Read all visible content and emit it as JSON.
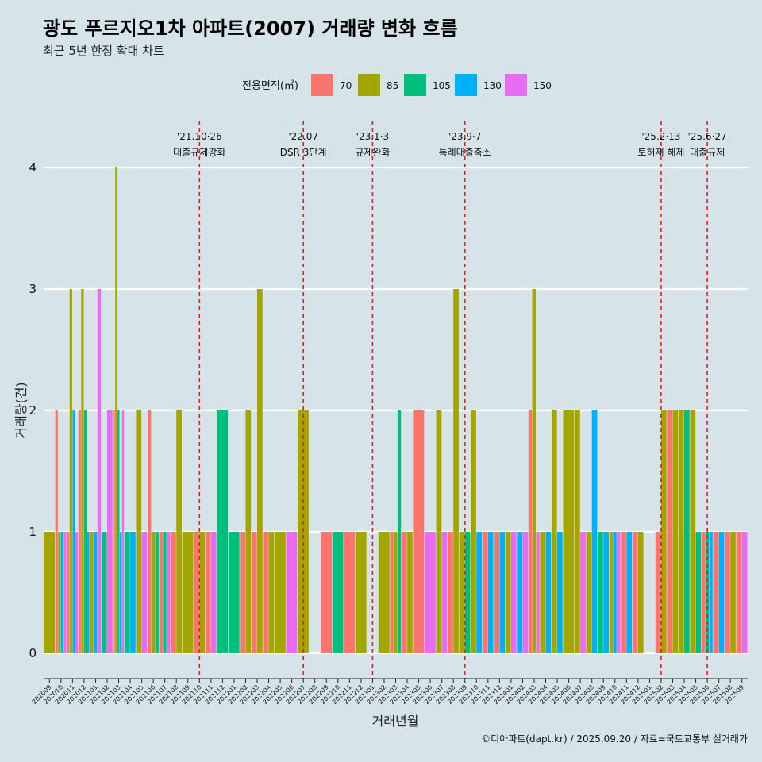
{
  "header": {
    "title": "광도 푸르지오1차 아파트(2007) 거래량 변화 흐름",
    "subtitle": "최근 5년 한정 확대 차트"
  },
  "caption": "©디아파트(dapt.kr) / 2025.09.20 / 자료=국토교통부 실거래가",
  "colors": {
    "background": "#d6e4ea",
    "grid": "#ffffff",
    "event_line": "#e0201b",
    "series": {
      "70": "#f8766d",
      "85": "#a3a500",
      "105": "#00bf7d",
      "130": "#00b0f6",
      "150": "#e76bf3"
    }
  },
  "chart_data": {
    "type": "bar",
    "position": "dodge",
    "xlabel": "거래년월",
    "ylabel": "거래량(건)",
    "ylim": [
      0,
      4
    ],
    "yticks": [
      0,
      1,
      2,
      3,
      4
    ],
    "grid": true,
    "legend": {
      "title": "전용면적(㎡)",
      "position": "top",
      "entries": [
        "70",
        "85",
        "105",
        "130",
        "150"
      ]
    },
    "categories": [
      "202009",
      "202010",
      "202011",
      "202012",
      "202101",
      "202102",
      "202103",
      "202104",
      "202105",
      "202106",
      "202107",
      "202108",
      "202109",
      "202110",
      "202111",
      "202112",
      "202201",
      "202202",
      "202203",
      "202204",
      "202205",
      "202206",
      "202207",
      "202208",
      "202209",
      "202210",
      "202211",
      "202212",
      "202301",
      "202302",
      "202303",
      "202304",
      "202305",
      "202306",
      "202307",
      "202308",
      "202309",
      "202310",
      "202311",
      "202312",
      "202401",
      "202402",
      "202403",
      "202404",
      "202405",
      "202406",
      "202407",
      "202408",
      "202409",
      "202410",
      "202411",
      "202412",
      "202501",
      "202502",
      "202503",
      "202504",
      "202505",
      "202506",
      "202507",
      "202508",
      "202509"
    ],
    "tick_labels": [
      "202009",
      "202010",
      "202011",
      "202012",
      "202101",
      "202102",
      "202103",
      "202104",
      "202105",
      "202106",
      "202107",
      "202108",
      "202109",
      "202110",
      "202111",
      "202112",
      "202201",
      "202202",
      "202203",
      "202204",
      "202205",
      "202206",
      "202207",
      "202208",
      "202209",
      "202210",
      "202211",
      "202212",
      "202301",
      "202302",
      "202303",
      "202304",
      "202305",
      "202306",
      "202307",
      "202308",
      "202309",
      "202310",
      "202311",
      "202312",
      "202401",
      "202402",
      "202403",
      "202404",
      "202405",
      "202406",
      "202407",
      "202408",
      "202409",
      "202410",
      "202411",
      "202412",
      "202501",
      "202502",
      "202503",
      "202504",
      "202505",
      "202506",
      "202507",
      "202508",
      "202509"
    ],
    "months": [
      {
        "m": "202009",
        "bars": [
          {
            "a": "85",
            "v": 1
          }
        ]
      },
      {
        "m": "202010",
        "bars": [
          {
            "a": "70",
            "v": 2
          },
          {
            "a": "85",
            "v": 1
          },
          {
            "a": "130",
            "v": 1
          },
          {
            "a": "150",
            "v": 1
          }
        ]
      },
      {
        "m": "202011",
        "bars": [
          {
            "a": "70",
            "v": 1
          },
          {
            "a": "85",
            "v": 3
          },
          {
            "a": "130",
            "v": 2
          },
          {
            "a": "150",
            "v": 1
          }
        ]
      },
      {
        "m": "202012",
        "bars": [
          {
            "a": "70",
            "v": 2
          },
          {
            "a": "85",
            "v": 3
          },
          {
            "a": "105",
            "v": 2
          },
          {
            "a": "130",
            "v": 1
          }
        ]
      },
      {
        "m": "202101",
        "bars": [
          {
            "a": "85",
            "v": 1
          },
          {
            "a": "130",
            "v": 1
          },
          {
            "a": "150",
            "v": 3
          }
        ]
      },
      {
        "m": "202102",
        "bars": [
          {
            "a": "105",
            "v": 1
          },
          {
            "a": "150",
            "v": 2
          }
        ]
      },
      {
        "m": "202103",
        "bars": [
          {
            "a": "70",
            "v": 2
          },
          {
            "a": "85",
            "v": 4
          },
          {
            "a": "105",
            "v": 2
          },
          {
            "a": "130",
            "v": 1
          },
          {
            "a": "150",
            "v": 2
          }
        ]
      },
      {
        "m": "202104",
        "bars": [
          {
            "a": "105",
            "v": 1
          },
          {
            "a": "130",
            "v": 1
          }
        ]
      },
      {
        "m": "202105",
        "bars": [
          {
            "a": "85",
            "v": 2
          },
          {
            "a": "150",
            "v": 1
          }
        ]
      },
      {
        "m": "202106",
        "bars": [
          {
            "a": "70",
            "v": 2
          },
          {
            "a": "85",
            "v": 1
          },
          {
            "a": "105",
            "v": 1
          }
        ]
      },
      {
        "m": "202107",
        "bars": [
          {
            "a": "70",
            "v": 1
          },
          {
            "a": "105",
            "v": 1
          },
          {
            "a": "150",
            "v": 1
          }
        ]
      },
      {
        "m": "202108",
        "bars": [
          {
            "a": "70",
            "v": 1
          },
          {
            "a": "85",
            "v": 2
          }
        ]
      },
      {
        "m": "202109",
        "bars": [
          {
            "a": "85",
            "v": 1
          }
        ]
      },
      {
        "m": "202110",
        "bars": [
          {
            "a": "70",
            "v": 1
          },
          {
            "a": "85",
            "v": 1
          }
        ]
      },
      {
        "m": "202111",
        "bars": [
          {
            "a": "70",
            "v": 1
          },
          {
            "a": "150",
            "v": 1
          }
        ]
      },
      {
        "m": "202112",
        "bars": [
          {
            "a": "105",
            "v": 2
          }
        ]
      },
      {
        "m": "202201",
        "bars": [
          {
            "a": "105",
            "v": 1
          }
        ]
      },
      {
        "m": "202202",
        "bars": [
          {
            "a": "70",
            "v": 1
          },
          {
            "a": "85",
            "v": 2
          }
        ]
      },
      {
        "m": "202203",
        "bars": [
          {
            "a": "70",
            "v": 1
          },
          {
            "a": "85",
            "v": 3
          }
        ]
      },
      {
        "m": "202204",
        "bars": [
          {
            "a": "70",
            "v": 1
          },
          {
            "a": "85",
            "v": 1
          }
        ]
      },
      {
        "m": "202205",
        "bars": [
          {
            "a": "85",
            "v": 1
          }
        ]
      },
      {
        "m": "202206",
        "bars": [
          {
            "a": "150",
            "v": 1
          }
        ]
      },
      {
        "m": "202207",
        "bars": [
          {
            "a": "85",
            "v": 2
          }
        ]
      },
      {
        "m": "202208",
        "bars": []
      },
      {
        "m": "202209",
        "bars": [
          {
            "a": "70",
            "v": 1
          }
        ]
      },
      {
        "m": "202210",
        "bars": [
          {
            "a": "105",
            "v": 1
          }
        ]
      },
      {
        "m": "202211",
        "bars": [
          {
            "a": "70",
            "v": 1
          }
        ]
      },
      {
        "m": "202212",
        "bars": [
          {
            "a": "85",
            "v": 1
          }
        ]
      },
      {
        "m": "202301",
        "bars": []
      },
      {
        "m": "202302",
        "bars": [
          {
            "a": "85",
            "v": 1
          }
        ]
      },
      {
        "m": "202303",
        "bars": [
          {
            "a": "70",
            "v": 1
          },
          {
            "a": "85",
            "v": 1
          },
          {
            "a": "105",
            "v": 2
          }
        ]
      },
      {
        "m": "202304",
        "bars": [
          {
            "a": "70",
            "v": 1
          },
          {
            "a": "85",
            "v": 1
          }
        ]
      },
      {
        "m": "202305",
        "bars": [
          {
            "a": "70",
            "v": 2
          }
        ]
      },
      {
        "m": "202306",
        "bars": [
          {
            "a": "150",
            "v": 1
          }
        ]
      },
      {
        "m": "202307",
        "bars": [
          {
            "a": "85",
            "v": 2
          },
          {
            "a": "150",
            "v": 1
          }
        ]
      },
      {
        "m": "202308",
        "bars": [
          {
            "a": "70",
            "v": 1
          },
          {
            "a": "85",
            "v": 3
          }
        ]
      },
      {
        "m": "202309",
        "bars": [
          {
            "a": "85",
            "v": 1
          },
          {
            "a": "105",
            "v": 1
          }
        ]
      },
      {
        "m": "202310",
        "bars": [
          {
            "a": "85",
            "v": 2
          },
          {
            "a": "130",
            "v": 1
          }
        ]
      },
      {
        "m": "202311",
        "bars": [
          {
            "a": "70",
            "v": 1
          },
          {
            "a": "130",
            "v": 1
          }
        ]
      },
      {
        "m": "202312",
        "bars": [
          {
            "a": "70",
            "v": 1
          },
          {
            "a": "130",
            "v": 1
          }
        ]
      },
      {
        "m": "202401",
        "bars": [
          {
            "a": "85",
            "v": 1
          },
          {
            "a": "150",
            "v": 1
          }
        ]
      },
      {
        "m": "202402",
        "bars": [
          {
            "a": "130",
            "v": 1
          },
          {
            "a": "150",
            "v": 1
          }
        ]
      },
      {
        "m": "202403",
        "bars": [
          {
            "a": "70",
            "v": 2
          },
          {
            "a": "85",
            "v": 3
          },
          {
            "a": "150",
            "v": 1
          }
        ]
      },
      {
        "m": "202404",
        "bars": [
          {
            "a": "85",
            "v": 1
          },
          {
            "a": "130",
            "v": 1
          }
        ]
      },
      {
        "m": "202405",
        "bars": [
          {
            "a": "85",
            "v": 2
          },
          {
            "a": "130",
            "v": 1
          }
        ]
      },
      {
        "m": "202406",
        "bars": [
          {
            "a": "85",
            "v": 2
          }
        ]
      },
      {
        "m": "202407",
        "bars": [
          {
            "a": "85",
            "v": 2
          },
          {
            "a": "150",
            "v": 1
          }
        ]
      },
      {
        "m": "202408",
        "bars": [
          {
            "a": "85",
            "v": 1
          },
          {
            "a": "130",
            "v": 2
          }
        ]
      },
      {
        "m": "202409",
        "bars": [
          {
            "a": "105",
            "v": 1
          },
          {
            "a": "130",
            "v": 1
          }
        ]
      },
      {
        "m": "202410",
        "bars": [
          {
            "a": "85",
            "v": 1
          },
          {
            "a": "130",
            "v": 1
          },
          {
            "a": "150",
            "v": 1
          }
        ]
      },
      {
        "m": "202411",
        "bars": [
          {
            "a": "70",
            "v": 1
          },
          {
            "a": "130",
            "v": 1
          }
        ]
      },
      {
        "m": "202412",
        "bars": [
          {
            "a": "70",
            "v": 1
          },
          {
            "a": "85",
            "v": 1
          }
        ]
      },
      {
        "m": "202501",
        "bars": []
      },
      {
        "m": "202502",
        "bars": [
          {
            "a": "70",
            "v": 1
          },
          {
            "a": "85",
            "v": 2
          }
        ]
      },
      {
        "m": "202503",
        "bars": [
          {
            "a": "70",
            "v": 2
          },
          {
            "a": "85",
            "v": 2
          }
        ]
      },
      {
        "m": "202504",
        "bars": [
          {
            "a": "85",
            "v": 2
          },
          {
            "a": "105",
            "v": 2
          }
        ]
      },
      {
        "m": "202505",
        "bars": [
          {
            "a": "85",
            "v": 2
          },
          {
            "a": "105",
            "v": 1
          }
        ]
      },
      {
        "m": "202506",
        "bars": [
          {
            "a": "70",
            "v": 1
          },
          {
            "a": "105",
            "v": 1
          },
          {
            "a": "130",
            "v": 1
          }
        ]
      },
      {
        "m": "202507",
        "bars": [
          {
            "a": "70",
            "v": 1
          },
          {
            "a": "130",
            "v": 1
          }
        ]
      },
      {
        "m": "202508",
        "bars": [
          {
            "a": "70",
            "v": 1
          },
          {
            "a": "85",
            "v": 1
          }
        ]
      },
      {
        "m": "202509",
        "bars": [
          {
            "a": "70",
            "v": 1
          },
          {
            "a": "150",
            "v": 1
          }
        ]
      }
    ],
    "events": [
      {
        "at": "202110",
        "date": "'21.10·26",
        "label": "대출규제강화"
      },
      {
        "at": "202207",
        "date": "'22.07",
        "label": "DSR 3단계"
      },
      {
        "at": "202301",
        "date": "'23.1·3",
        "label": "규제완화"
      },
      {
        "at": "202309",
        "date": "'23.9·7",
        "label": "특례대출축소"
      },
      {
        "at": "202502",
        "date": "'25.2·13",
        "label": "토허제 해제"
      },
      {
        "at": "202506",
        "date": "'25.6·27",
        "label": "대출규제"
      }
    ]
  }
}
